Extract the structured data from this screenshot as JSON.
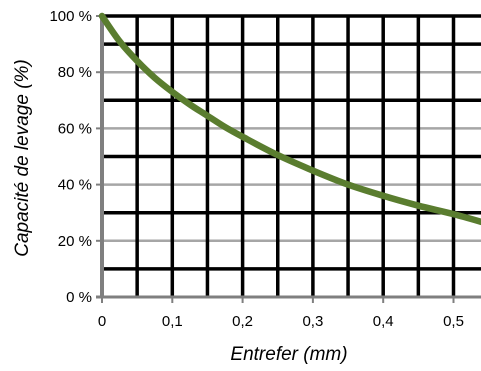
{
  "chart_data": {
    "type": "line",
    "title": "",
    "xlabel": "Entrefer (mm)",
    "ylabel": "Capacité de levage (%)",
    "xlim": [
      0,
      0.55
    ],
    "ylim": [
      0,
      100
    ],
    "x_ticks": [
      {
        "value": 0,
        "label": "0"
      },
      {
        "value": 0.1,
        "label": "0,1"
      },
      {
        "value": 0.2,
        "label": "0,2"
      },
      {
        "value": 0.3,
        "label": "0,3"
      },
      {
        "value": 0.4,
        "label": "0,4"
      },
      {
        "value": 0.5,
        "label": "0,5"
      }
    ],
    "y_ticks": [
      {
        "value": 0,
        "label": "0 %"
      },
      {
        "value": 20,
        "label": "20 %"
      },
      {
        "value": 40,
        "label": "40 %"
      },
      {
        "value": 60,
        "label": "60 %"
      },
      {
        "value": 80,
        "label": "80 %"
      },
      {
        "value": 100,
        "label": "100 %"
      }
    ],
    "grid": true,
    "series": [
      {
        "color": "#5a7d2f",
        "x": [
          0,
          0.025,
          0.05,
          0.075,
          0.1,
          0.125,
          0.15,
          0.175,
          0.2,
          0.25,
          0.3,
          0.35,
          0.4,
          0.45,
          0.5,
          0.55
        ],
        "y": [
          100,
          91,
          84,
          78,
          73,
          68.5,
          64.5,
          60.5,
          57,
          50.5,
          45,
          40,
          36,
          32.5,
          29.5,
          26
        ]
      }
    ]
  },
  "colors": {
    "major_grid": "#000000",
    "minor_grid": "#a6a6a6",
    "axis": "#7f7f7f"
  }
}
